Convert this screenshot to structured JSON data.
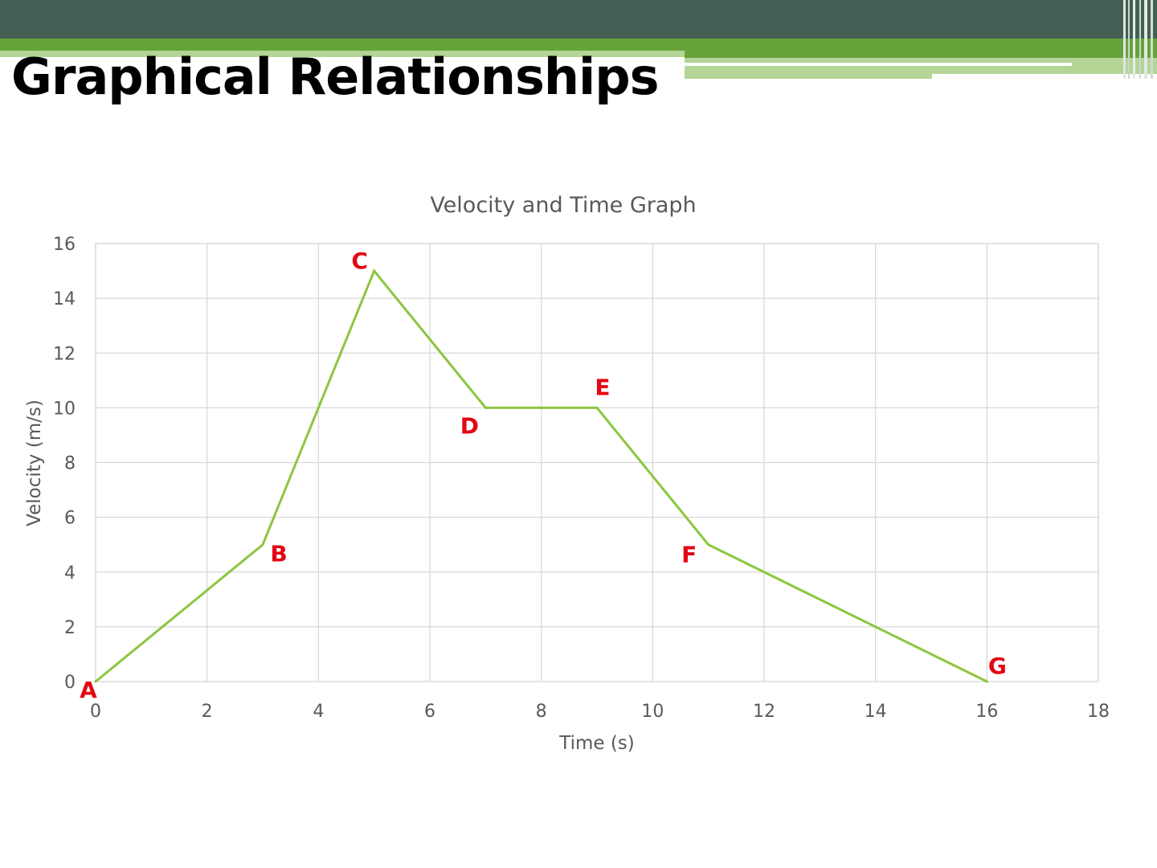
{
  "slide": {
    "title": "Graphical Relationships"
  },
  "colors": {
    "header_band": "#445f54",
    "accent_green": "#66a33a",
    "accent_light_green": "#b4d596",
    "series_line": "#8dc63f",
    "point_labels": "#e30613",
    "grid": "#d9d9d9",
    "text_gray": "#595959"
  },
  "chart_data": {
    "type": "line",
    "title": "Velocity and Time Graph",
    "xlabel": "Time (s)",
    "ylabel": "Velocity (m/s)",
    "xlim": [
      0,
      18
    ],
    "ylim": [
      0,
      16
    ],
    "xticks": [
      0,
      2,
      4,
      6,
      8,
      10,
      12,
      14,
      16,
      18
    ],
    "yticks": [
      0,
      2,
      4,
      6,
      8,
      10,
      12,
      14,
      16
    ],
    "grid": true,
    "legend": "none",
    "series": [
      {
        "x": [
          0,
          3,
          5,
          7,
          9,
          11,
          16
        ],
        "y": [
          0,
          5,
          15,
          10,
          10,
          5,
          0
        ]
      }
    ],
    "point_labels": [
      {
        "text": "A",
        "x": 0,
        "y": 0
      },
      {
        "text": "B",
        "x": 3,
        "y": 5
      },
      {
        "text": "C",
        "x": 5,
        "y": 15
      },
      {
        "text": "D",
        "x": 7,
        "y": 10
      },
      {
        "text": "E",
        "x": 9,
        "y": 10
      },
      {
        "text": "F",
        "x": 11,
        "y": 5
      },
      {
        "text": "G",
        "x": 16,
        "y": 0
      }
    ]
  }
}
